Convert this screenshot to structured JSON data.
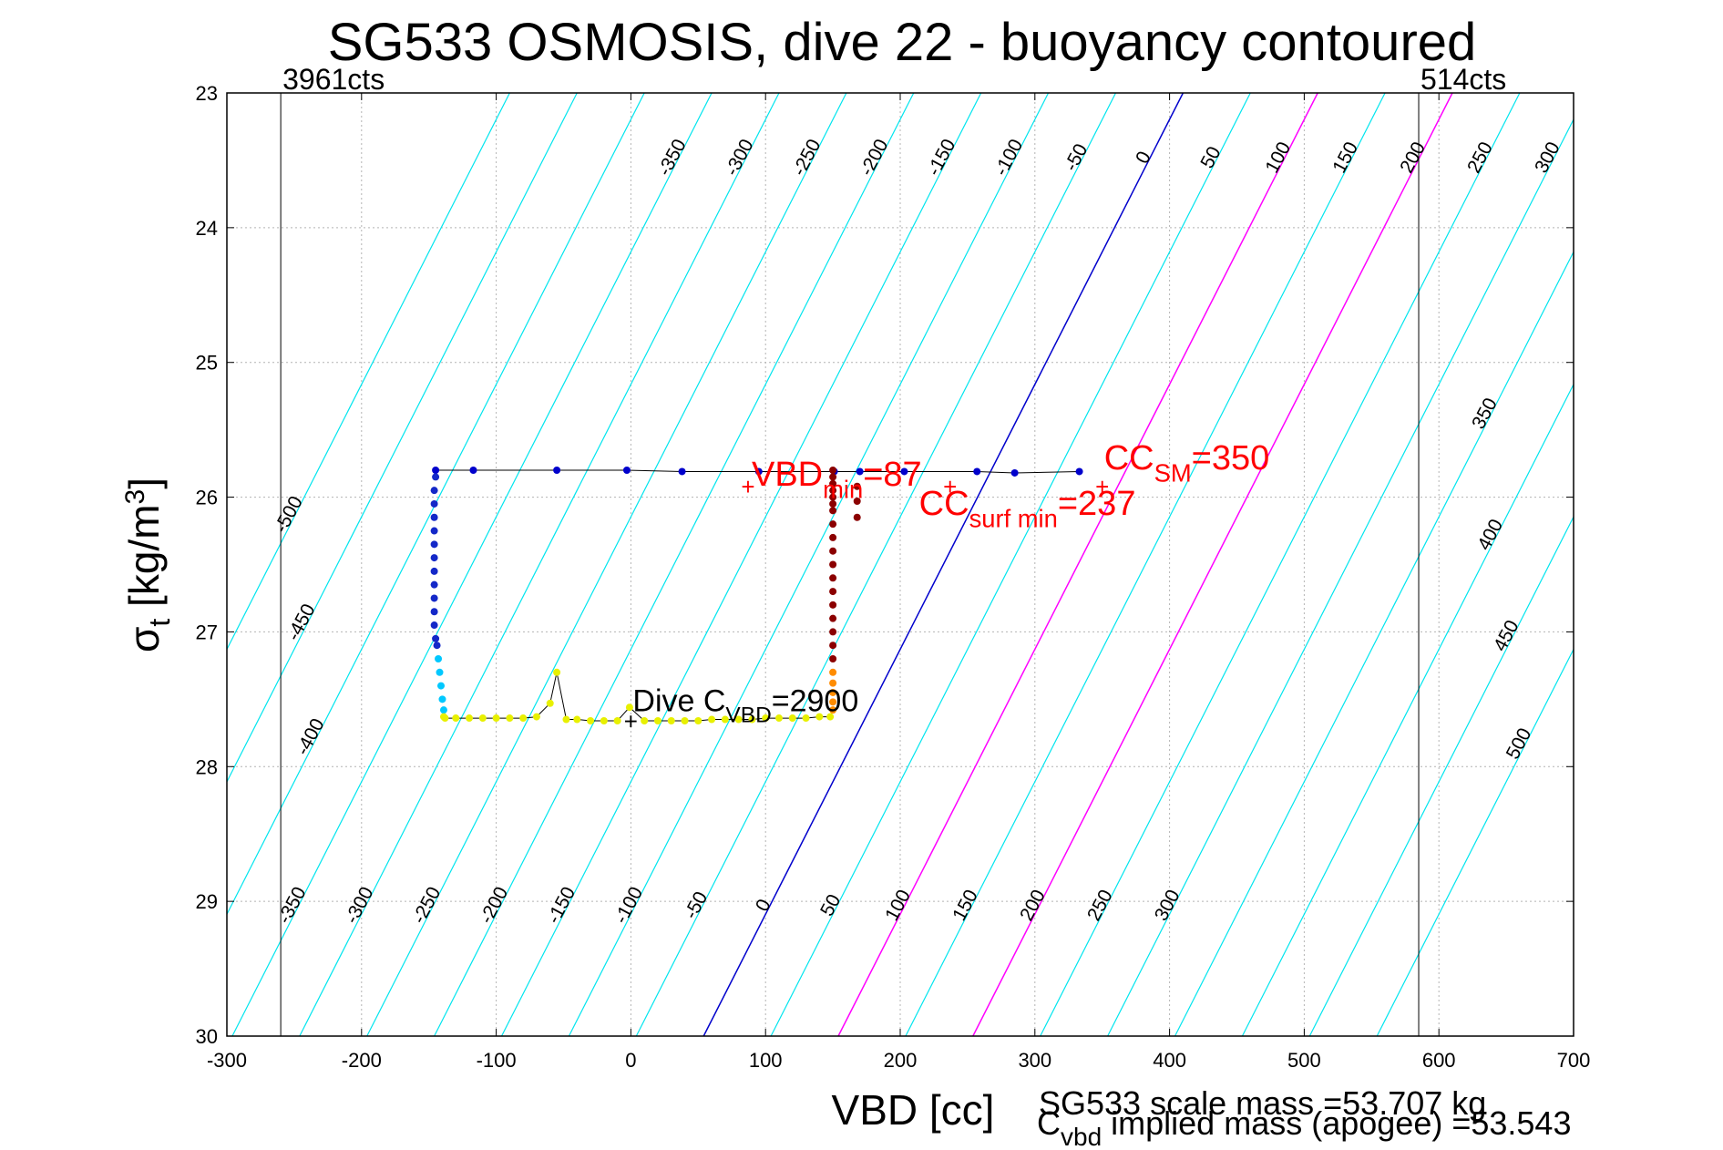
{
  "chart_data": {
    "type": "scatter",
    "title": "SG533 OSMOSIS, dive 22 - buoyancy contoured",
    "xlabel": "VBD [cc]",
    "ylabel_main": "σ",
    "ylabel_sub": "t",
    "ylabel_units": " [kg/m",
    "ylabel_sup": "3",
    "ylabel_close": "]",
    "xlim": [
      -300,
      700
    ],
    "ylim": [
      23,
      30
    ],
    "y_reversed": true,
    "grid": true,
    "x_ticks": [
      "-300",
      "-200",
      "-100",
      "0",
      "100",
      "200",
      "300",
      "400",
      "500",
      "600",
      "700"
    ],
    "y_ticks": [
      "23",
      "24",
      "25",
      "26",
      "27",
      "28",
      "29",
      "30"
    ],
    "vertical_lines": [
      {
        "x": -260,
        "label": "3961cts"
      },
      {
        "x": 585,
        "label": "514cts"
      }
    ],
    "contours": {
      "levels": [
        -500,
        -450,
        -400,
        -350,
        -300,
        -250,
        -200,
        -150,
        -100,
        -50,
        0,
        50,
        100,
        150,
        200,
        250,
        300,
        350,
        400,
        450,
        500
      ],
      "vbd_at_top_for_zero": 410,
      "vbd_at_bottom_for_zero": 54,
      "colors": {
        "default": "#00e5ee",
        "zero": "#0000cc",
        "highlight": "#ff00ff"
      },
      "highlight_levels": [
        100,
        200
      ],
      "top_labels": [
        "-350",
        "-300",
        "-250",
        "-200",
        "-150",
        "-100",
        "-50",
        "0",
        "50",
        "100",
        "150",
        "200",
        "250",
        "300"
      ],
      "bottom_labels": [
        "-350",
        "-300",
        "-250",
        "-200",
        "-150",
        "-100",
        "-50",
        "0",
        "50",
        "100",
        "150",
        "200",
        "250",
        "300"
      ],
      "left_labels": [
        "-500",
        "-450",
        "-400"
      ],
      "right_labels": [
        "350",
        "400",
        "450",
        "500"
      ]
    },
    "series": [
      {
        "points": [
          [
            -145,
            25.8
          ],
          [
            -117,
            25.8
          ],
          [
            -55,
            25.8
          ],
          [
            -3,
            25.8
          ],
          [
            38,
            25.81
          ],
          [
            95,
            25.81
          ],
          [
            151,
            25.81
          ],
          [
            170,
            25.81
          ],
          [
            203,
            25.81
          ],
          [
            257,
            25.81
          ],
          [
            285,
            25.82
          ],
          [
            333,
            25.81
          ]
        ],
        "color": "#0000cc"
      },
      {
        "points": [
          [
            -145,
            25.85
          ],
          [
            -146,
            25.95
          ],
          [
            -146,
            26.05
          ],
          [
            -146,
            26.15
          ],
          [
            -146,
            26.25
          ],
          [
            -146,
            26.35
          ],
          [
            -146,
            26.45
          ],
          [
            -146,
            26.55
          ],
          [
            -146,
            26.65
          ],
          [
            -146,
            26.75
          ],
          [
            -146,
            26.85
          ],
          [
            -146,
            26.95
          ],
          [
            -145,
            27.05
          ],
          [
            -144,
            27.1
          ]
        ],
        "color": "#1428c8"
      },
      {
        "points": [
          [
            -143,
            27.2
          ],
          [
            -142,
            27.3
          ],
          [
            -141,
            27.4
          ],
          [
            -140,
            27.5
          ],
          [
            -139,
            27.58
          ]
        ],
        "color": "#00c8ff"
      },
      {
        "points": [
          [
            -139,
            27.63
          ],
          [
            -138,
            27.64
          ],
          [
            -130,
            27.64
          ],
          [
            -120,
            27.64
          ],
          [
            -110,
            27.64
          ],
          [
            -100,
            27.64
          ],
          [
            -90,
            27.64
          ],
          [
            -80,
            27.64
          ],
          [
            -70,
            27.63
          ],
          [
            -60,
            27.53
          ],
          [
            -55,
            27.3
          ],
          [
            -48,
            27.65
          ],
          [
            -40,
            27.65
          ],
          [
            -30,
            27.66
          ],
          [
            -20,
            27.66
          ],
          [
            -10,
            27.66
          ],
          [
            -1,
            27.56
          ],
          [
            10,
            27.66
          ],
          [
            20,
            27.66
          ],
          [
            30,
            27.66
          ],
          [
            40,
            27.66
          ],
          [
            50,
            27.66
          ],
          [
            60,
            27.65
          ],
          [
            70,
            27.65
          ],
          [
            80,
            27.65
          ],
          [
            90,
            27.65
          ],
          [
            100,
            27.64
          ],
          [
            110,
            27.64
          ],
          [
            120,
            27.64
          ],
          [
            130,
            27.64
          ],
          [
            140,
            27.63
          ],
          [
            148,
            27.63
          ]
        ],
        "color": "#e8f000"
      },
      {
        "points": [
          [
            150,
            27.3
          ],
          [
            150,
            27.38
          ],
          [
            150,
            27.45
          ],
          [
            150,
            27.52
          ],
          [
            150,
            27.58
          ]
        ],
        "color": "#ff8c00"
      },
      {
        "points": [
          [
            150,
            25.8
          ],
          [
            150,
            25.85
          ],
          [
            150,
            25.9
          ],
          [
            150,
            25.95
          ],
          [
            150,
            26.0
          ],
          [
            150,
            26.05
          ],
          [
            150,
            26.1
          ],
          [
            150,
            26.2
          ],
          [
            150,
            26.3
          ],
          [
            150,
            26.4
          ],
          [
            150,
            26.5
          ],
          [
            150,
            26.6
          ],
          [
            150,
            26.7
          ],
          [
            150,
            26.8
          ],
          [
            150,
            26.9
          ],
          [
            150,
            27.0
          ],
          [
            150,
            27.1
          ],
          [
            150,
            27.2
          ],
          [
            168,
            25.92
          ],
          [
            168,
            26.03
          ],
          [
            168,
            26.15
          ]
        ],
        "color": "#8b0000"
      }
    ],
    "track_line": [
      [
        -145,
        25.8
      ],
      [
        -117,
        25.8
      ],
      [
        -55,
        25.8
      ],
      [
        -3,
        25.8
      ],
      [
        38,
        25.81
      ],
      [
        95,
        25.81
      ],
      [
        151,
        25.81
      ],
      [
        203,
        25.81
      ],
      [
        257,
        25.81
      ],
      [
        285,
        25.82
      ],
      [
        333,
        25.81
      ]
    ],
    "annotations": {
      "vbd_min": {
        "x": 87,
        "y": 25.93,
        "main": "VBD",
        "sub": "min",
        "tail": "=87"
      },
      "cc_surf_min": {
        "x": 237,
        "y": 25.93,
        "main": "CC",
        "sub": "surf min",
        "tail": "=237"
      },
      "cc_sm": {
        "x": 350,
        "y": 25.93,
        "main": "CC",
        "sub": "SM",
        "tail": "=350"
      },
      "dive_c_vbd": {
        "x": 0,
        "y": 27.67,
        "main": "Dive C",
        "sub": "VBD",
        "tail": "=2900"
      }
    },
    "footer": {
      "scale_mass": "SG533 scale mass =53.707 kg",
      "implied_main": "C",
      "implied_sub": "vbd",
      "implied_tail": " implied mass (apogee) =53.543"
    }
  }
}
